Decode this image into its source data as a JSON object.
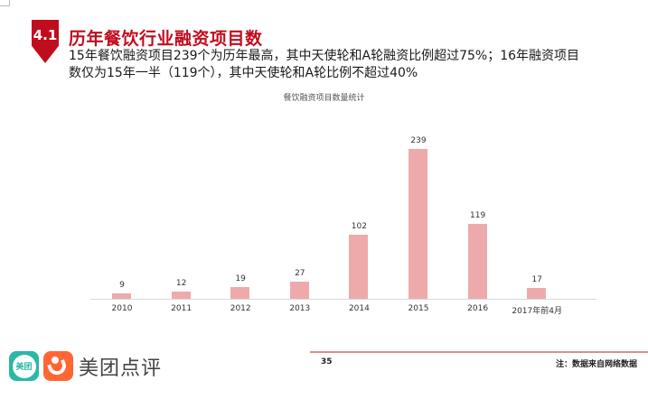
{
  "header": {
    "section_number": "4.1",
    "title": "历年餐饮行业融资项目数",
    "subtitle_line1": "15年餐饮融资项目239个为历年最高，其中天使轮和A轮融资比例超过75%；16年融资项目",
    "subtitle_line2": "数仅为15年一半（119个），其中天使轮和A轮比例不超过40%"
  },
  "colors": {
    "accent": "#c00d1e",
    "bar": "#eeaaaa",
    "footer_line": "#e38a8a"
  },
  "chart_data": {
    "type": "bar",
    "title": "餐饮融资项目数量统计",
    "categories": [
      "2010",
      "2011",
      "2012",
      "2013",
      "2014",
      "2015",
      "2016",
      "2017年前4月"
    ],
    "values": [
      9,
      12,
      19,
      27,
      102,
      239,
      119,
      17
    ],
    "xlabel": "",
    "ylabel": "",
    "ylim": [
      0,
      289
    ],
    "grid": false,
    "legend": "none",
    "data_labels": true
  },
  "footer": {
    "brand_text": "美团点评",
    "meituan_icon_text": "美团",
    "page_number": "35",
    "note": "注：数据来自网络数据"
  }
}
